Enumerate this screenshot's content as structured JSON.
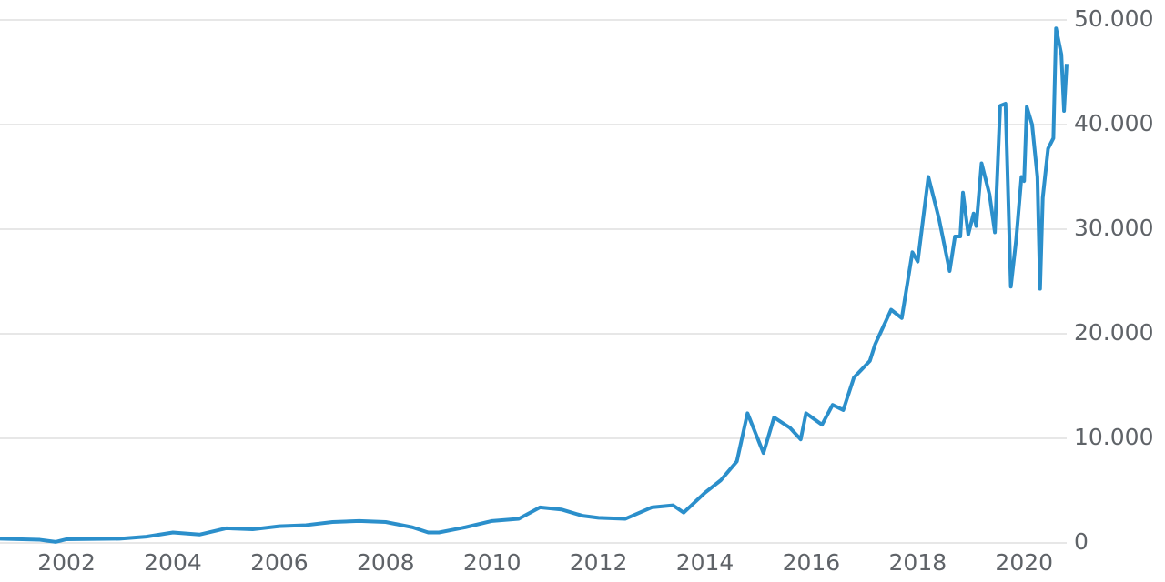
{
  "chart_data": {
    "type": "line",
    "x": [
      2000.75,
      2001.5,
      2001.8,
      2002.0,
      2003.0,
      2003.5,
      2004.0,
      2004.5,
      2005.0,
      2005.5,
      2006.0,
      2006.5,
      2007.0,
      2007.5,
      2008.0,
      2008.5,
      2008.8,
      2009.0,
      2009.5,
      2010.0,
      2010.5,
      2010.9,
      2011.3,
      2011.7,
      2012.0,
      2012.5,
      2013.0,
      2013.4,
      2013.6,
      2014.0,
      2014.3,
      2014.6,
      2014.8,
      2015.1,
      2015.3,
      2015.6,
      2015.8,
      2015.9,
      2016.2,
      2016.4,
      2016.6,
      2016.8,
      2017.1,
      2017.2,
      2017.5,
      2017.7,
      2017.9,
      2018.0,
      2018.2,
      2018.4,
      2018.6,
      2018.7,
      2018.8,
      2018.85,
      2018.95,
      2019.05,
      2019.1,
      2019.2,
      2019.35,
      2019.45,
      2019.55,
      2019.65,
      2019.75,
      2019.85,
      2019.95,
      2020.0,
      2020.05,
      2020.15,
      2020.25,
      2020.3,
      2020.35,
      2020.45,
      2020.55,
      2020.6,
      2020.7,
      2020.75,
      2020.8
    ],
    "series": [
      {
        "color": "#2b8fcb",
        "values": [
          400,
          300,
          100,
          350,
          400,
          600,
          1000,
          800,
          1400,
          1300,
          1600,
          1700,
          2000,
          2100,
          2000,
          1500,
          1000,
          1000,
          1500,
          2100,
          2300,
          3400,
          3200,
          2600,
          2400,
          2300,
          3400,
          3600,
          2900,
          4800,
          6000,
          7800,
          12400,
          8600,
          12000,
          11000,
          9900,
          12400,
          11300,
          13200,
          12700,
          15800,
          17400,
          19000,
          22300,
          21500,
          27800,
          26900,
          35000,
          31000,
          26000,
          29300,
          29300,
          33500,
          29500,
          31500,
          30300,
          36300,
          33300,
          29700,
          41800,
          42000,
          24500,
          29000,
          35000,
          34600,
          41700,
          40000,
          35000,
          24300,
          33000,
          37700,
          38700,
          49200,
          46700,
          41300,
          45800
        ]
      }
    ],
    "xlim": [
      2000.75,
      2020.8
    ],
    "xticks": [
      2002,
      2004,
      2006,
      2008,
      2010,
      2012,
      2014,
      2016,
      2018,
      2020
    ],
    "ylim": [
      0,
      50000
    ],
    "yticks": [
      0,
      {
        "value": 10000,
        "label": "10.000"
      },
      {
        "value": 20000,
        "label": "20.000"
      },
      {
        "value": 30000,
        "label": "30.000"
      },
      {
        "value": 40000,
        "label": "40.000"
      },
      {
        "value": 50000,
        "label": "50.000"
      }
    ],
    "grid": true
  }
}
